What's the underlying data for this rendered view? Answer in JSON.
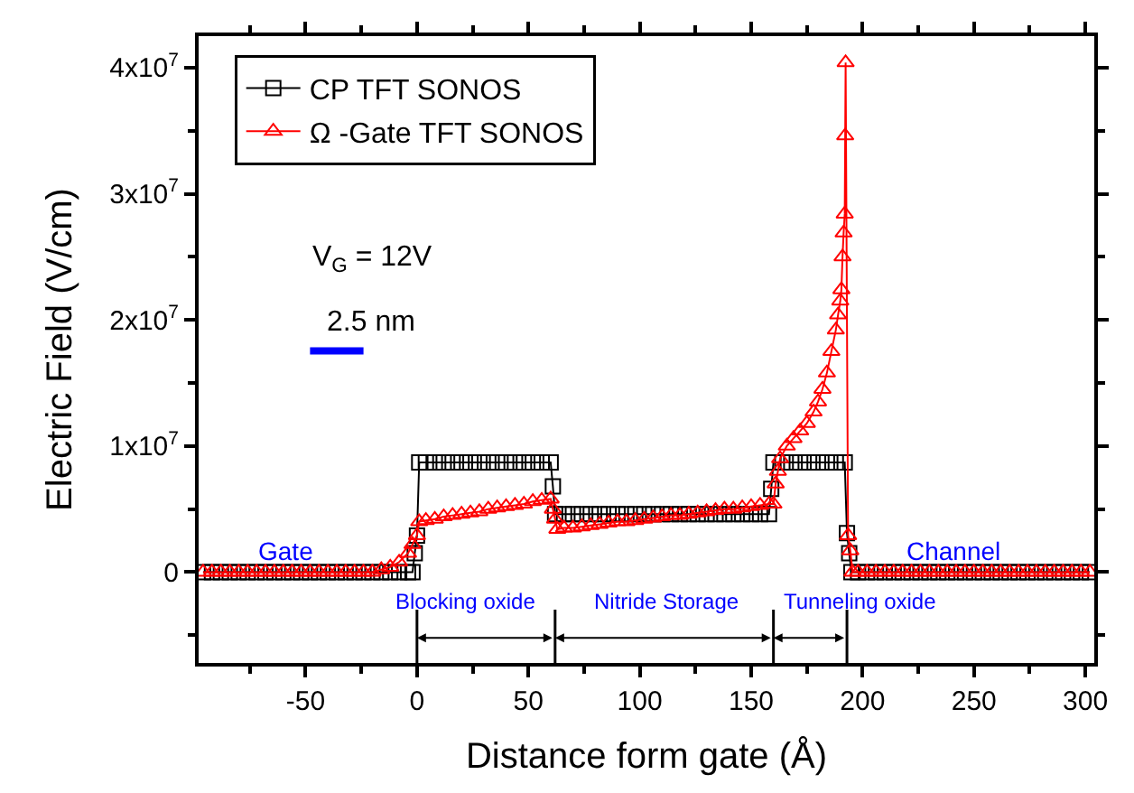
{
  "chart_data": {
    "type": "line",
    "xlabel": "Distance form gate (Å)",
    "ylabel": "Electric Field (V/cm)",
    "xlim": [
      -98,
      304
    ],
    "xticks": [
      -50,
      0,
      50,
      100,
      150,
      200,
      250,
      300
    ],
    "ylim": [
      -7200000,
      42500000
    ],
    "yticks": [
      {
        "value": 0,
        "label": "0"
      },
      {
        "value": 10000000,
        "label": "1x10$^{7}$"
      },
      {
        "value": 20000000,
        "label": "2x10$^{7}$"
      },
      {
        "value": 30000000,
        "label": "3x10$^{7}$"
      },
      {
        "value": 40000000,
        "label": "4x10$^{7}$"
      }
    ],
    "legend": "top left",
    "series": [
      {
        "name": "CP TFT SONOS",
        "color": "#000000",
        "marker": "square",
        "x": [
          -96,
          -92,
          -88,
          -84,
          -80,
          -76,
          -72,
          -68,
          -64,
          -60,
          -56,
          -52,
          -48,
          -44,
          -40,
          -36,
          -32,
          -28,
          -24,
          -20,
          -16,
          -12,
          -8,
          -4,
          -2,
          -1,
          0,
          1,
          4,
          8,
          12,
          16,
          20,
          24,
          28,
          32,
          36,
          40,
          44,
          48,
          52,
          56,
          60,
          61,
          62,
          66,
          70,
          74,
          78,
          82,
          86,
          90,
          94,
          98,
          102,
          106,
          110,
          114,
          118,
          122,
          126,
          130,
          134,
          138,
          142,
          146,
          150,
          154,
          158,
          159,
          160,
          164,
          168,
          172,
          176,
          180,
          184,
          188,
          192,
          193,
          194,
          195,
          198,
          202,
          206,
          210,
          214,
          218,
          222,
          226,
          230,
          234,
          238,
          242,
          246,
          250,
          254,
          258,
          262,
          266,
          270,
          274,
          278,
          282,
          286,
          290,
          294,
          298,
          302
        ],
        "values": [
          0,
          0,
          0,
          0,
          0,
          0,
          0,
          0,
          0,
          0,
          0,
          0,
          0,
          0,
          0,
          0,
          0,
          0,
          0,
          0,
          0,
          0,
          0,
          0,
          0,
          1500000,
          2900000,
          8700000,
          8700000,
          8700000,
          8700000,
          8700000,
          8700000,
          8700000,
          8700000,
          8700000,
          8700000,
          8700000,
          8700000,
          8700000,
          8700000,
          8700000,
          8700000,
          6800000,
          4600000,
          4600000,
          4600000,
          4600000,
          4600000,
          4600000,
          4600000,
          4600000,
          4600000,
          4600000,
          4600000,
          4600000,
          4600000,
          4600000,
          4600000,
          4600000,
          4600000,
          4600000,
          4600000,
          4600000,
          4600000,
          4600000,
          4600000,
          4600000,
          4600000,
          6600000,
          8700000,
          8700000,
          8700000,
          8700000,
          8700000,
          8700000,
          8700000,
          8700000,
          8700000,
          3100000,
          1500000,
          0,
          0,
          0,
          0,
          0,
          0,
          0,
          0,
          0,
          0,
          0,
          0,
          0,
          0,
          0,
          0,
          0,
          0,
          0,
          0,
          0,
          0,
          0,
          0,
          0,
          0,
          0,
          0
        ]
      },
      {
        "name": "Ω -Gate TFT SONOS",
        "color": "#ff0000",
        "marker": "triangle",
        "x": [
          -96,
          -92,
          -88,
          -84,
          -80,
          -76,
          -72,
          -68,
          -64,
          -60,
          -56,
          -52,
          -48,
          -44,
          -40,
          -36,
          -32,
          -28,
          -24,
          -20,
          -16,
          -12,
          -8,
          -4,
          -2,
          0,
          1,
          4,
          8,
          12,
          16,
          20,
          24,
          28,
          32,
          36,
          40,
          44,
          48,
          52,
          56,
          60,
          61,
          62,
          63,
          66,
          70,
          74,
          78,
          82,
          86,
          90,
          94,
          98,
          102,
          106,
          110,
          114,
          118,
          122,
          126,
          130,
          134,
          138,
          142,
          146,
          150,
          154,
          158,
          160,
          161,
          162,
          163,
          166,
          169,
          172,
          175,
          178,
          180,
          182,
          184,
          186,
          188,
          189,
          190,
          190.5,
          191,
          191.5,
          192,
          192.2,
          192.4,
          193.5,
          194.5,
          195.5,
          198,
          202,
          206,
          210,
          214,
          218,
          222,
          226,
          230,
          234,
          238,
          242,
          246,
          250,
          254,
          258,
          262,
          266,
          270,
          274,
          278,
          282,
          286,
          290,
          294,
          298,
          302
        ],
        "values": [
          0,
          0,
          0,
          0,
          0,
          0,
          0,
          0,
          0,
          0,
          0,
          0,
          0,
          0,
          0,
          0,
          0,
          0,
          0,
          0,
          200000,
          400000,
          800000,
          1500000,
          2200000,
          2900000,
          4000000,
          4100000,
          4200000,
          4400000,
          4500000,
          4600000,
          4700000,
          4800000,
          5000000,
          5100000,
          5200000,
          5300000,
          5400000,
          5600000,
          5700000,
          5800000,
          5000000,
          4200000,
          3400000,
          3500000,
          3500000,
          3600000,
          3700000,
          3800000,
          3900000,
          4000000,
          4000000,
          4100000,
          4200000,
          4300000,
          4400000,
          4500000,
          4500000,
          4600000,
          4700000,
          4800000,
          4900000,
          5000000,
          5000000,
          5100000,
          5200000,
          5300000,
          5400000,
          5400000,
          7000000,
          8000000,
          9000000,
          10000000,
          10600000,
          11200000,
          11800000,
          12700000,
          13500000,
          14500000,
          15800000,
          17500000,
          19200000,
          20400000,
          21500000,
          22400000,
          25000000,
          26900000,
          28400000,
          34600000,
          40400000,
          2900000,
          1700000,
          0,
          0,
          0,
          0,
          0,
          0,
          0,
          0,
          0,
          0,
          0,
          0,
          0,
          0,
          0,
          0,
          0,
          0,
          0,
          0,
          0,
          0,
          0,
          0,
          0,
          0,
          0,
          0
        ]
      }
    ],
    "ref_lines": [
      {
        "axis": "x",
        "value": 0
      },
      {
        "axis": "x",
        "value": 62
      },
      {
        "axis": "x",
        "value": 160
      },
      {
        "axis": "x",
        "value": 193
      }
    ],
    "annotations": [
      "Gate",
      "Channel",
      "V$_{G}$ = 12V",
      "2.5 nm",
      "Blocking oxide",
      "Nitride Storage",
      "Tunneling oxide"
    ]
  }
}
